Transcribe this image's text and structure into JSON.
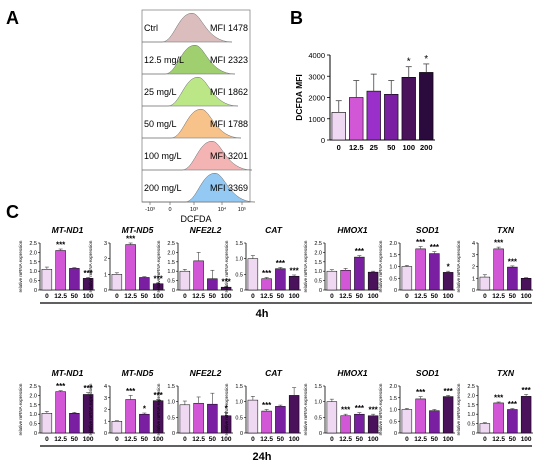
{
  "panel_labels": {
    "a": "A",
    "b": "B",
    "c": "C"
  },
  "colors": {
    "bar_ctrl": "#eed8f2",
    "bar_12_5": "#d157d6",
    "bar_25": "#9b2fc9",
    "bar_50": "#7b1fa2",
    "bar_100": "#4a125a",
    "bar_200": "#2b0a3d",
    "hist_ctrl": "#cfa7a7",
    "hist_12_5": "#7fbf3f",
    "hist_25": "#a6df5f",
    "hist_50": "#f6ad64",
    "hist_100": "#f29b9b",
    "hist_200": "#6fb7ef"
  },
  "panel_a": {
    "x_label": "DCFDA",
    "x_ticks": [
      "-10³",
      "0",
      "10³",
      "10⁴",
      "10⁵"
    ],
    "rows": [
      {
        "label": "Ctrl",
        "mfi": "MFI 1478"
      },
      {
        "label": "12.5 mg/L",
        "mfi": "MFI 2323"
      },
      {
        "label": "25 mg/L",
        "mfi": "MFI 1862"
      },
      {
        "label": "50 mg/L",
        "mfi": "MFI 1788"
      },
      {
        "label": "100 mg/L",
        "mfi": "MFI 3201"
      },
      {
        "label": "200 mg/L",
        "mfi": "MFI 3369"
      }
    ]
  },
  "panel_c": {
    "y_label": "relative mRNA expression",
    "time_4h": "4h",
    "time_24h": "24h"
  },
  "chart_data": [
    {
      "id": "B",
      "type": "bar",
      "ylabel": "DCFDA MFI",
      "ylim": [
        0,
        4000
      ],
      "yticks": [
        0,
        1000,
        2000,
        3000,
        4000
      ],
      "categories": [
        "0",
        "12.5",
        "25",
        "50",
        "100",
        "200"
      ],
      "values": [
        1300,
        2000,
        2300,
        2150,
        2950,
        3180
      ],
      "errors": [
        550,
        800,
        800,
        650,
        500,
        400
      ],
      "annotations": [
        "",
        "",
        "",
        "",
        "*",
        "*"
      ]
    },
    {
      "id": "4h-MT-ND1",
      "type": "bar",
      "title": "MT-ND1",
      "ylim": [
        0,
        2.5
      ],
      "yticks": [
        "0",
        "0.5",
        "1.0",
        "1.5",
        "2.0",
        "2.5"
      ],
      "categories": [
        "0",
        "12.5",
        "50",
        "100"
      ],
      "values": [
        1.1,
        2.1,
        1.15,
        0.62
      ],
      "errors": [
        0.12,
        0.08,
        0.04,
        0.05
      ],
      "annotations": [
        "",
        "***",
        "",
        "***"
      ]
    },
    {
      "id": "4h-MT-ND5",
      "type": "bar",
      "title": "MT-ND5",
      "ylim": [
        0,
        3
      ],
      "yticks": [
        "0",
        "1",
        "2",
        "3"
      ],
      "categories": [
        "0",
        "12.5",
        "50",
        "100"
      ],
      "values": [
        1.0,
        2.9,
        0.8,
        0.4
      ],
      "errors": [
        0.1,
        0.1,
        0.05,
        0.05
      ],
      "annotations": [
        "",
        "***",
        "",
        "***"
      ]
    },
    {
      "id": "4h-NFE2L2",
      "type": "bar",
      "title": "NFE2L2",
      "ylim": [
        0,
        2.5
      ],
      "yticks": [
        "0",
        "0.5",
        "1.0",
        "1.5",
        "2.0",
        "2.5"
      ],
      "categories": [
        "0",
        "12.5",
        "50",
        "100"
      ],
      "values": [
        1.0,
        1.55,
        0.6,
        0.15
      ],
      "errors": [
        0.1,
        0.45,
        0.45,
        0.05
      ],
      "annotations": [
        "",
        "",
        "",
        "***"
      ]
    },
    {
      "id": "4h-CAT",
      "type": "bar",
      "title": "CAT",
      "ylim": [
        0,
        1.5
      ],
      "yticks": [
        "0",
        "0.5",
        "1.0",
        "1.5"
      ],
      "categories": [
        "0",
        "12.5",
        "50",
        "100"
      ],
      "values": [
        1.0,
        0.36,
        0.68,
        0.44
      ],
      "errors": [
        0.1,
        0.04,
        0.04,
        0.04
      ],
      "annotations": [
        "",
        "***",
        "***",
        "***"
      ]
    },
    {
      "id": "4h-HMOX1",
      "type": "bar",
      "title": "HMOX1",
      "ylim": [
        0,
        2.5
      ],
      "yticks": [
        "0",
        "0.5",
        "1.0",
        "1.5",
        "2.0",
        "2.5"
      ],
      "categories": [
        "0",
        "12.5",
        "50",
        "100"
      ],
      "values": [
        1.0,
        1.05,
        1.75,
        0.95
      ],
      "errors": [
        0.08,
        0.1,
        0.08,
        0.05
      ],
      "annotations": [
        "",
        "",
        "***",
        ""
      ]
    },
    {
      "id": "4h-SOD1",
      "type": "bar",
      "title": "SOD1",
      "ylim": [
        0,
        2.0
      ],
      "yticks": [
        "0",
        "0.5",
        "1.0",
        "1.5",
        "2.0"
      ],
      "categories": [
        "0",
        "12.5",
        "50",
        "100"
      ],
      "values": [
        1.0,
        1.75,
        1.55,
        0.75
      ],
      "errors": [
        0.05,
        0.1,
        0.08,
        0.05
      ],
      "annotations": [
        "",
        "***",
        "***",
        "*"
      ]
    },
    {
      "id": "4h-TXN",
      "type": "bar",
      "title": "TXN",
      "ylim": [
        0,
        4
      ],
      "yticks": [
        "0",
        "1",
        "2",
        "3",
        "4"
      ],
      "categories": [
        "0",
        "12.5",
        "50",
        "100"
      ],
      "values": [
        1.1,
        3.5,
        1.95,
        1.0
      ],
      "errors": [
        0.2,
        0.15,
        0.1,
        0.05
      ],
      "annotations": [
        "",
        "***",
        "***",
        ""
      ]
    },
    {
      "id": "24h-MT-ND1",
      "type": "bar",
      "title": "MT-ND1",
      "ylim": [
        0,
        2.5
      ],
      "yticks": [
        "0",
        "0.5",
        "1.0",
        "1.5",
        "2.0",
        "2.5"
      ],
      "categories": [
        "0",
        "12.5",
        "50",
        "100"
      ],
      "values": [
        1.05,
        2.2,
        1.05,
        2.05
      ],
      "errors": [
        0.1,
        0.05,
        0.05,
        0.1
      ],
      "annotations": [
        "",
        "***",
        "",
        "***"
      ]
    },
    {
      "id": "24h-MT-ND5",
      "type": "bar",
      "title": "MT-ND5",
      "ylim": [
        0,
        4
      ],
      "yticks": [
        "0",
        "1",
        "2",
        "3",
        "4"
      ],
      "categories": [
        "0",
        "12.5",
        "50",
        "100"
      ],
      "values": [
        1.0,
        2.85,
        1.6,
        2.75
      ],
      "errors": [
        0.05,
        0.35,
        0.1,
        0.1
      ],
      "annotations": [
        "",
        "***",
        "*",
        "***"
      ]
    },
    {
      "id": "24h-NFE2L2",
      "type": "bar",
      "title": "NFE2L2",
      "ylim": [
        0,
        1.5
      ],
      "yticks": [
        "0",
        "0.5",
        "1.0",
        "1.5"
      ],
      "categories": [
        "0",
        "12.5",
        "50",
        "100"
      ],
      "values": [
        0.9,
        0.95,
        0.92,
        0.55
      ],
      "errors": [
        0.12,
        0.2,
        0.35,
        0.1
      ],
      "annotations": [
        "",
        "",
        "",
        "*"
      ]
    },
    {
      "id": "24h-CAT",
      "type": "bar",
      "title": "CAT",
      "ylim": [
        0,
        1.5
      ],
      "yticks": [
        "0",
        "0.5",
        "1.0",
        "1.5"
      ],
      "categories": [
        "0",
        "12.5",
        "50",
        "100"
      ],
      "values": [
        1.05,
        0.7,
        0.85,
        1.2
      ],
      "errors": [
        0.12,
        0.05,
        0.04,
        0.25
      ],
      "annotations": [
        "",
        "***",
        "",
        ""
      ]
    },
    {
      "id": "24h-HMOX1",
      "type": "bar",
      "title": "HMOX1",
      "ylim": [
        0,
        1.5
      ],
      "yticks": [
        "0",
        "0.5",
        "1.0",
        "1.5"
      ],
      "categories": [
        "0",
        "12.5",
        "50",
        "100"
      ],
      "values": [
        1.0,
        0.55,
        0.6,
        0.55
      ],
      "errors": [
        0.08,
        0.05,
        0.05,
        0.05
      ],
      "annotations": [
        "",
        "***",
        "***",
        "***"
      ]
    },
    {
      "id": "24h-SOD1",
      "type": "bar",
      "title": "SOD1",
      "ylim": [
        0,
        2.0
      ],
      "yticks": [
        "0",
        "0.5",
        "1.0",
        "1.5",
        "2.0"
      ],
      "categories": [
        "0",
        "12.5",
        "50",
        "100"
      ],
      "values": [
        1.0,
        1.45,
        0.95,
        1.55
      ],
      "errors": [
        0.05,
        0.1,
        0.05,
        0.05
      ],
      "annotations": [
        "",
        "***",
        "",
        "***"
      ]
    },
    {
      "id": "24h-TXN",
      "type": "bar",
      "title": "TXN",
      "ylim": [
        0,
        2.5
      ],
      "yticks": [
        "0",
        "0.5",
        "1.0",
        "1.5",
        "2.0",
        "2.5"
      ],
      "categories": [
        "0",
        "12.5",
        "50",
        "100"
      ],
      "values": [
        0.5,
        1.6,
        1.25,
        1.95
      ],
      "errors": [
        0.05,
        0.05,
        0.05,
        0.1
      ],
      "annotations": [
        "",
        "***",
        "***",
        "***"
      ]
    }
  ]
}
